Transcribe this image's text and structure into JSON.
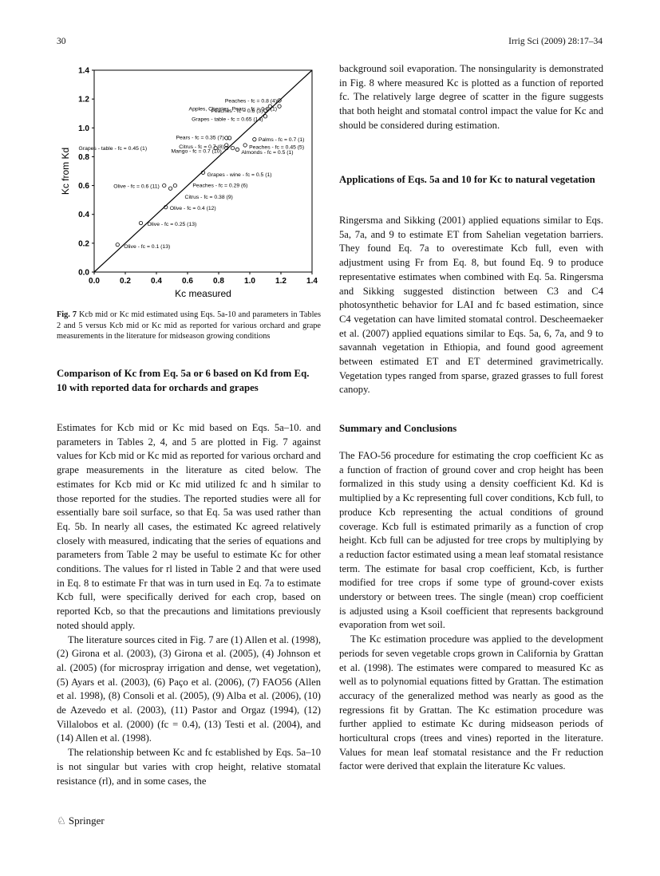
{
  "header": {
    "page_number": "30",
    "journal": "Irrig Sci (2009) 28:17–34"
  },
  "figure": {
    "caption_label": "Fig. 7",
    "caption_text": "Kcb mid or Kc mid estimated using Eqs. 5a-10 and parameters in Tables 2 and 5 versus Kcb mid or Kc mid as reported for various orchard and grape measurements in the literature for midseason growing conditions"
  },
  "chart_data": {
    "type": "scatter",
    "xlabel": "Kc measured",
    "ylabel": "Kc from Kd",
    "xlim": [
      0.0,
      1.4
    ],
    "ylim": [
      0.0,
      1.4
    ],
    "xticks": [
      "0.0",
      "0.2",
      "0.4",
      "0.6",
      "0.8",
      "1.0",
      "1.2",
      "1.4"
    ],
    "yticks": [
      "0.0",
      "0.2",
      "0.4",
      "0.6",
      "0.8",
      "1.0",
      "1.2",
      "1.4"
    ],
    "reference_line": "1:1",
    "grid": false,
    "points": [
      {
        "x": 1.19,
        "y": 1.19,
        "label": "Peaches - fc = 0.8 (4)"
      },
      {
        "x": 1.19,
        "y": 1.15,
        "label": "Apples, Cherries, Pears - fc = 0.5 (1)"
      },
      {
        "x": 1.13,
        "y": 1.15
      },
      {
        "x": 1.1,
        "y": 1.12,
        "label": "Peaches - fc = 0.6 (3)"
      },
      {
        "x": 1.1,
        "y": 1.08,
        "label": "Grapes - table - fc = 0.65 (14)"
      },
      {
        "x": 0.85,
        "y": 0.93,
        "label": "Pears - fc = 0.35 (7)"
      },
      {
        "x": 0.87,
        "y": 0.93
      },
      {
        "x": 0.85,
        "y": 0.88,
        "label": "Citrus - fc = 0.7 (8)"
      },
      {
        "x": 0.78,
        "y": 0.86,
        "label": "Grapes - table - fc = 0.45 (1)"
      },
      {
        "x": 0.89,
        "y": 0.86
      },
      {
        "x": 0.85,
        "y": 0.86,
        "label": "Mango - fc = 0.7 (10)"
      },
      {
        "x": 1.03,
        "y": 0.92,
        "label": "Palms - fc = 0.7 (1)"
      },
      {
        "x": 0.97,
        "y": 0.88,
        "label": "Peaches - fc = 0.45 (5)"
      },
      {
        "x": 0.92,
        "y": 0.85,
        "label": "Almonds - fc = 0.5 (1)"
      },
      {
        "x": 0.7,
        "y": 0.69,
        "label": "Grapes - wine - fc = 0.5 (1)"
      },
      {
        "x": 0.52,
        "y": 0.6,
        "label": "Peaches - fc = 0.29 (6)"
      },
      {
        "x": 0.45,
        "y": 0.6,
        "label": "Olive - fc = 0.6 (11)"
      },
      {
        "x": 0.49,
        "y": 0.58,
        "label": "Citrus - fc = 0.38 (9)"
      },
      {
        "x": 0.46,
        "y": 0.45,
        "label": "Olive - fc = 0.4 (12)"
      },
      {
        "x": 0.3,
        "y": 0.34,
        "label": "Olive - fc = 0.25 (13)"
      },
      {
        "x": 0.15,
        "y": 0.19,
        "label": "Olive - fc = 0.1 (13)"
      }
    ]
  },
  "left_column": {
    "heading": "Comparison of Kc from Eq. 5a or 6 based on Kd from Eq. 10 with reported data for orchards and grapes",
    "p1": "Estimates for Kcb mid or Kc mid based on Eqs. 5a–10. and parameters in Tables 2, 4, and 5 are plotted in Fig. 7 against values for Kcb mid or Kc mid as reported for various orchard and grape measurements in the literature as cited below. The estimates for Kcb mid or Kc mid utilized fc and h similar to those reported for the studies. The reported studies were all for essentially bare soil surface, so that Eq. 5a was used rather than Eq. 5b. In nearly all cases, the estimated Kc agreed relatively closely with measured, indicating that the series of equations and parameters from Table 2 may be useful to estimate Kc for other conditions. The values for rl listed in Table 2 and that were used in Eq. 8 to estimate Fr that was in turn used in Eq. 7a to estimate Kcb full, were specifically derived for each crop, based on reported Kcb, so that the precautions and limitations previously noted should apply.",
    "p2": "The literature sources cited in Fig. 7 are (1) Allen et al. (1998), (2) Girona et al. (2003), (3) Girona et al. (2005), (4) Johnson et al. (2005) (for microspray irrigation and dense, wet vegetation), (5) Ayars et al. (2003), (6) Paço et al. (2006), (7) FAO56 (Allen et al. 1998), (8) Consoli et al. (2005), (9) Alba et al. (2006), (10) de Azevedo et al. (2003), (11) Pastor and Orgaz (1994), (12) Villalobos et al. (2000) (fc = 0.4), (13) Testi et al. (2004), and (14) Allen et al. (1998).",
    "p3": "The relationship between Kc and fc established by Eqs. 5a–10 is not singular but varies with crop height, relative stomatal resistance (rl), and in some cases, the"
  },
  "right_column": {
    "p0": "background soil evaporation. The nonsingularity is demonstrated in Fig. 8 where measured Kc is plotted as a function of reported fc. The relatively large degree of scatter in the figure suggests that both height and stomatal control impact the value for Kc and should be considered during estimation.",
    "heading1": "Applications of Eqs. 5a and 10 for Kc to natural vegetation",
    "p1": "Ringersma and Sikking (2001) applied equations similar to Eqs. 5a, 7a, and 9 to estimate ET from Sahelian vegetation barriers. They found Eq. 7a to overestimate Kcb full, even with adjustment using Fr from Eq. 8, but found Eq. 9 to produce representative estimates when combined with Eq. 5a. Ringersma and Sikking suggested distinction between C3 and C4 photosynthetic behavior for LAI and fc based estimation, since C4 vegetation can have limited stomatal control. Descheemaeker et al. (2007) applied equations similar to Eqs. 5a, 6, 7a, and 9 to savannah vegetation in Ethiopia, and found good agreement between estimated ET and ET determined gravimetrically. Vegetation types ranged from sparse, grazed grasses to full forest canopy.",
    "heading2": "Summary and Conclusions",
    "p2": "The FAO-56 procedure for estimating the crop coefficient Kc as a function of fraction of ground cover and crop height has been formalized in this study using a density coefficient Kd. Kd is multiplied by a Kc representing full cover conditions, Kcb full, to produce Kcb representing the actual conditions of ground coverage. Kcb full is estimated primarily as a function of crop height. Kcb full can be adjusted for tree crops by multiplying by a reduction factor estimated using a mean leaf stomatal resistance term. The estimate for basal crop coefficient, Kcb, is further modified for tree crops if some type of ground-cover exists understory or between trees. The single (mean) crop coefficient is adjusted using a Ksoil coefficient that represents background evaporation from wet soil.",
    "p3": "The Kc estimation procedure was applied to the development periods for seven vegetable crops grown in California by Grattan et al. (1998). The estimates were compared to measured Kc as well as to polynomial equations fitted by Grattan. The estimation accuracy of the generalized method was nearly as good as the regressions fit by Grattan. The Kc estimation procedure was further applied to estimate Kc during midseason periods of horticultural crops (trees and vines) reported in the literature. Values for mean leaf stomatal resistance and the Fr reduction factor were derived that explain the literature Kc values."
  },
  "footer": {
    "publisher": "Springer"
  }
}
